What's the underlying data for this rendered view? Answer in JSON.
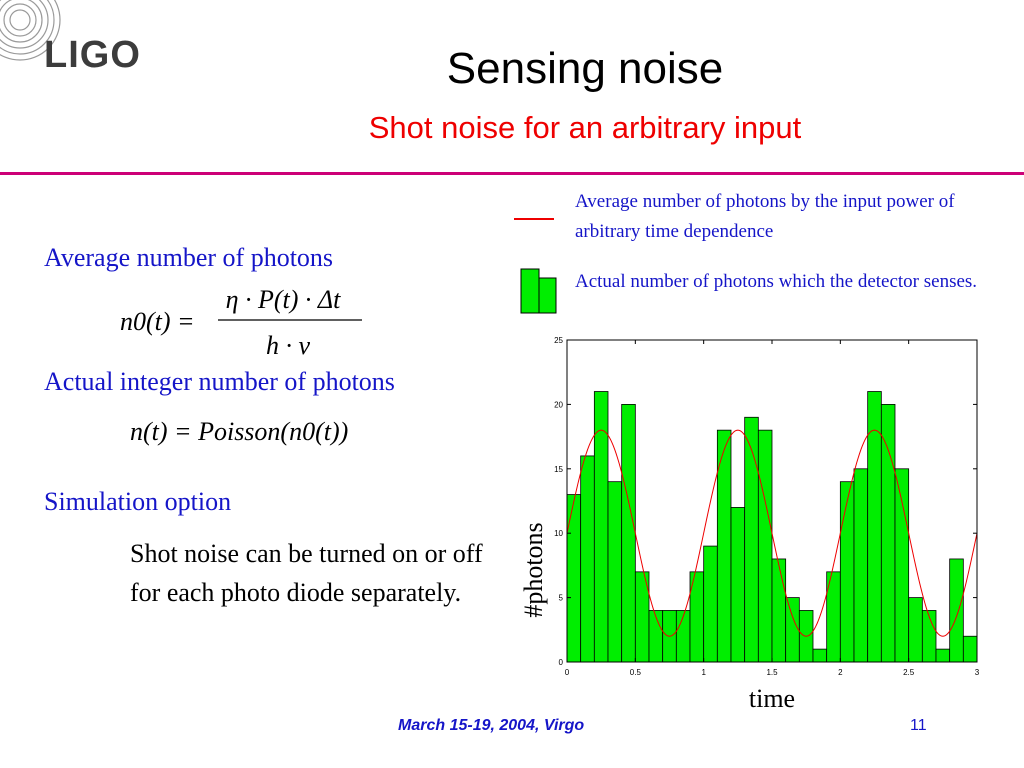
{
  "header": {
    "logo_text": "LIGO",
    "title": "Sensing noise",
    "subtitle": "Shot noise for an arbitrary input"
  },
  "content": {
    "heading_avg": "Average number of photons",
    "heading_actual": "Actual integer number of photons",
    "heading_sim": "Simulation option",
    "sim_text": "Shot noise can be turned on or off for each photo diode separately."
  },
  "equations": {
    "eq1_lhs": "n0(t) =",
    "eq1_numerator": "η · P(t) · Δt",
    "eq1_denominator": "h · ν",
    "eq2": "n(t) = Poisson(n0(t))"
  },
  "legend": {
    "line_label": "Average number of photons by the input power of arbitrary time dependence",
    "bar_label": "Actual number of photons which the detector senses.",
    "line_color": "#ee0000",
    "bar_color": "#00ee00"
  },
  "chart_data": {
    "type": "bar",
    "xlabel": "time",
    "ylabel": "#photons",
    "xlim": [
      0,
      3
    ],
    "ylim": [
      0,
      25
    ],
    "xticks": [
      0,
      0.5,
      1,
      1.5,
      2,
      2.5,
      3
    ],
    "xtick_labels": [
      "0",
      "0.5",
      "1",
      "1.5",
      "2",
      "2.5",
      "3"
    ],
    "yticks": [
      0,
      5,
      10,
      15,
      20,
      25
    ],
    "ytick_labels": [
      "0",
      "5",
      "10",
      "15",
      "20",
      "25"
    ],
    "bar_width": 0.1,
    "x": [
      0.05,
      0.15,
      0.25,
      0.35,
      0.45,
      0.55,
      0.65,
      0.75,
      0.85,
      0.95,
      1.05,
      1.15,
      1.25,
      1.35,
      1.45,
      1.55,
      1.65,
      1.75,
      1.85,
      1.95,
      2.05,
      2.15,
      2.25,
      2.35,
      2.45,
      2.55,
      2.65,
      2.75,
      2.85,
      2.95
    ],
    "values": [
      13,
      16,
      21,
      14,
      20,
      7,
      4,
      4,
      4,
      7,
      9,
      18,
      12,
      19,
      18,
      8,
      5,
      4,
      1,
      7,
      14,
      15,
      21,
      20,
      15,
      5,
      4,
      1,
      8,
      2
    ],
    "series": [
      {
        "name": "Average number of photons by the input power of arbitrary time dependence",
        "type": "line",
        "color": "#ee0000",
        "mean": 10,
        "amplitude": 8,
        "period": 1,
        "peak_x": 0.25
      }
    ],
    "grid": false
  },
  "footer": {
    "date": "March 15-19, 2004, Virgo",
    "page": "11"
  }
}
